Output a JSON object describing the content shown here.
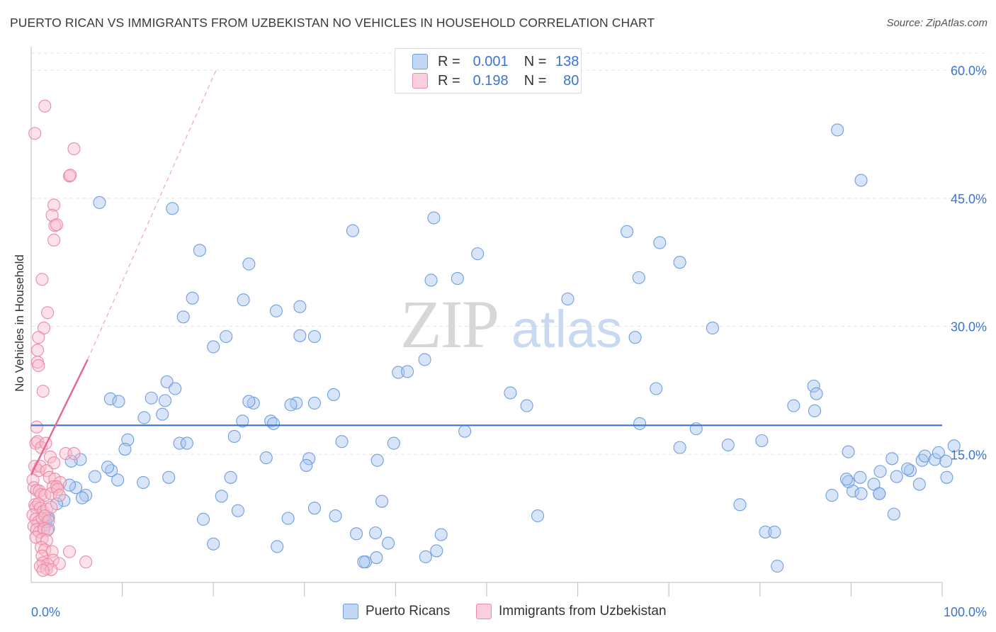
{
  "title": "PUERTO RICAN VS IMMIGRANTS FROM UZBEKISTAN NO VEHICLES IN HOUSEHOLD CORRELATION CHART",
  "source": "Source: ZipAtlas.com",
  "watermark": {
    "zip": "ZIP",
    "atlas": "atlas"
  },
  "colors": {
    "blue_fill": "#a9c6ef",
    "blue_stroke": "#6f9ee0",
    "blue_line": "#3b74d1",
    "pink_fill": "#f6bccd",
    "pink_stroke": "#ec8aa8",
    "pink_line": "#e8658f",
    "grid": "#e3e3e3",
    "tick_text": "#3b74d1"
  },
  "legend": {
    "rows": [
      {
        "r_label": "R =",
        "r_value": "0.001",
        "n_label": "N =",
        "n_value": "138"
      },
      {
        "r_label": "R =",
        "r_value": "0.198",
        "n_label": "N =",
        "n_value": "80"
      }
    ]
  },
  "bottom_legend": {
    "series1": "Puerto Ricans",
    "series2": "Immigrants from Uzbekistan"
  },
  "chart_data": {
    "type": "scatter",
    "title": "PUERTO RICAN VS IMMIGRANTS FROM UZBEKISTAN NO VEHICLES IN HOUSEHOLD CORRELATION CHART",
    "xlabel": "",
    "ylabel": "No Vehicles in Household",
    "xlim": [
      0,
      100
    ],
    "ylim": [
      0,
      62
    ],
    "x_tick_labels": [
      "0.0%",
      "100.0%"
    ],
    "y_ticks": [
      15,
      30,
      45,
      60
    ],
    "y_tick_labels": [
      "15.0%",
      "30.0%",
      "45.0%",
      "60.0%"
    ],
    "series": [
      {
        "name": "Puerto Ricans",
        "trend": {
          "x": [
            0,
            100
          ],
          "y": [
            18.4,
            18.4
          ],
          "style": "solid"
        },
        "points": [
          [
            7.5,
            44.5
          ],
          [
            15.5,
            43.8
          ],
          [
            18.5,
            38.9
          ],
          [
            23.9,
            37.3
          ],
          [
            17.7,
            33.3
          ],
          [
            23.3,
            33.1
          ],
          [
            16.7,
            31.1
          ],
          [
            26.9,
            31.8
          ],
          [
            20,
            27.6
          ],
          [
            21.4,
            28.8
          ],
          [
            29.5,
            32.3
          ],
          [
            29.5,
            28.9
          ],
          [
            31.1,
            28.8
          ],
          [
            35.3,
            41.2
          ],
          [
            44.2,
            42.7
          ],
          [
            49,
            38.5
          ],
          [
            43.9,
            35.4
          ],
          [
            46.8,
            35.6
          ],
          [
            52.6,
            22.2
          ],
          [
            54.4,
            20.7
          ],
          [
            43.2,
            26.1
          ],
          [
            40.3,
            24.6
          ],
          [
            41.3,
            24.7
          ],
          [
            58.9,
            33.2
          ],
          [
            65.4,
            41.1
          ],
          [
            66.7,
            35.7
          ],
          [
            69,
            39.8
          ],
          [
            71.2,
            37.5
          ],
          [
            66.3,
            28.7
          ],
          [
            74.8,
            29.8
          ],
          [
            68.6,
            22.7
          ],
          [
            66.8,
            18.6
          ],
          [
            73,
            18
          ],
          [
            71.2,
            15.8
          ],
          [
            76.5,
            16.1
          ],
          [
            80.2,
            16.6
          ],
          [
            83.7,
            20.7
          ],
          [
            86,
            20.1
          ],
          [
            85.9,
            23
          ],
          [
            86.2,
            22.1
          ],
          [
            88.5,
            53
          ],
          [
            91.1,
            47.1
          ],
          [
            93.1,
            10.4
          ],
          [
            94.5,
            14.5
          ],
          [
            95,
            12.4
          ],
          [
            96.5,
            13.1
          ],
          [
            97.8,
            14.3
          ],
          [
            98.1,
            14.8
          ],
          [
            97.5,
            11.5
          ],
          [
            99.2,
            14.4
          ],
          [
            99.6,
            15.2
          ],
          [
            100.4,
            14.2
          ],
          [
            100.5,
            12.3
          ],
          [
            101.3,
            16
          ],
          [
            93.2,
            13
          ],
          [
            96.2,
            13.3
          ],
          [
            91,
            12.3
          ],
          [
            92.5,
            11.5
          ],
          [
            90.2,
            10.7
          ],
          [
            89.7,
            11.8
          ],
          [
            89.5,
            12.1
          ],
          [
            87.9,
            10.2
          ],
          [
            89.7,
            15.3
          ],
          [
            91.1,
            10.4
          ],
          [
            93.1,
            10.4
          ],
          [
            94.7,
            8
          ],
          [
            80.6,
            5.9
          ],
          [
            81.6,
            5.9
          ],
          [
            81.9,
            1.9
          ],
          [
            77.8,
            9.1
          ],
          [
            55.6,
            7.8
          ],
          [
            47.6,
            17.7
          ],
          [
            45,
            5.6
          ],
          [
            44.5,
            3.7
          ],
          [
            43.3,
            3
          ],
          [
            37.9,
            2.9
          ],
          [
            36.7,
            2.4
          ],
          [
            39.2,
            4.6
          ],
          [
            35.7,
            5.7
          ],
          [
            37.8,
            5.8
          ],
          [
            33.4,
            7.8
          ],
          [
            31.1,
            8.7
          ],
          [
            28.2,
            7.5
          ],
          [
            27,
            4.2
          ],
          [
            20,
            4.5
          ],
          [
            18.9,
            7.4
          ],
          [
            20.9,
            10.1
          ],
          [
            22.7,
            8.4
          ],
          [
            21.9,
            12.3
          ],
          [
            22.3,
            17.1
          ],
          [
            23.2,
            18.9
          ],
          [
            24.4,
            21
          ],
          [
            23.9,
            21.2
          ],
          [
            25.8,
            14.6
          ],
          [
            26.3,
            18.9
          ],
          [
            26.6,
            18.6
          ],
          [
            29.1,
            21
          ],
          [
            28.5,
            20.8
          ],
          [
            30.5,
            14.5
          ],
          [
            30.2,
            13.7
          ],
          [
            31.1,
            21
          ],
          [
            33.2,
            22
          ],
          [
            34.1,
            16.5
          ],
          [
            38,
            14.3
          ],
          [
            39.8,
            16.3
          ],
          [
            38.5,
            9.5
          ],
          [
            36.5,
            2.4
          ],
          [
            16.3,
            16.3
          ],
          [
            17.1,
            16.3
          ],
          [
            15.1,
            12.3
          ],
          [
            14.4,
            19.7
          ],
          [
            14.7,
            21.3
          ],
          [
            14.9,
            23.5
          ],
          [
            15.8,
            22.7
          ],
          [
            13.2,
            21.6
          ],
          [
            12.4,
            19.3
          ],
          [
            12.3,
            11.7
          ],
          [
            10.6,
            16.7
          ],
          [
            10.3,
            15.6
          ],
          [
            9.5,
            12
          ],
          [
            8.8,
            13.1
          ],
          [
            8.4,
            13.5
          ],
          [
            8.7,
            21.5
          ],
          [
            9.6,
            21.2
          ],
          [
            7,
            12.4
          ],
          [
            6,
            10.2
          ],
          [
            5.4,
            14.4
          ],
          [
            5.6,
            9.9
          ],
          [
            4.9,
            11.1
          ],
          [
            4.4,
            14.2
          ],
          [
            4.2,
            11.4
          ],
          [
            3.6,
            9.6
          ],
          [
            2.8,
            9.2
          ],
          [
            1.8,
            7.5
          ],
          [
            1.5,
            6.7
          ],
          [
            1.9,
            6.3
          ],
          [
            1.6,
            7.1
          ],
          [
            1.9,
            7.6
          ]
        ]
      },
      {
        "name": "Immigrants from Uzbekistan",
        "trend": {
          "x": [
            0,
            6.2
          ],
          "y": [
            12.6,
            26.1
          ],
          "dashed_to": {
            "x": 20.3,
            "y": 60
          },
          "style": "solid+dashed"
        },
        "points": [
          [
            1.5,
            55.8
          ],
          [
            0.4,
            52.6
          ],
          [
            4.7,
            50.8
          ],
          [
            4.2,
            47.6
          ],
          [
            4.3,
            47.7
          ],
          [
            2.5,
            44.2
          ],
          [
            2.3,
            43
          ],
          [
            2.6,
            41.8
          ],
          [
            2.5,
            40.1
          ],
          [
            2.8,
            41.9
          ],
          [
            1.2,
            35.5
          ],
          [
            1.8,
            31.6
          ],
          [
            1.4,
            29.8
          ],
          [
            0.8,
            28.7
          ],
          [
            0.7,
            27.2
          ],
          [
            0.7,
            25.8
          ],
          [
            0.8,
            25.4
          ],
          [
            1.3,
            22.4
          ],
          [
            0.6,
            18.2
          ],
          [
            0.5,
            16.3
          ],
          [
            0.7,
            16.5
          ],
          [
            1.1,
            15.8
          ],
          [
            1.6,
            16.3
          ],
          [
            2.1,
            14.7
          ],
          [
            2.5,
            14
          ],
          [
            3.8,
            15.1
          ],
          [
            4.7,
            15.1
          ],
          [
            0.4,
            13.6
          ],
          [
            0.8,
            13.1
          ],
          [
            1,
            13.6
          ],
          [
            1.7,
            13.1
          ],
          [
            2,
            12.3
          ],
          [
            2.6,
            12.1
          ],
          [
            3.2,
            11.7
          ],
          [
            2.4,
            11.2
          ],
          [
            2.8,
            11.2
          ],
          [
            0.2,
            12
          ],
          [
            0.3,
            11.1
          ],
          [
            0.6,
            10.8
          ],
          [
            0.9,
            10.7
          ],
          [
            1.1,
            10.3
          ],
          [
            1.5,
            10.2
          ],
          [
            2.2,
            10.4
          ],
          [
            2.9,
            10.9
          ],
          [
            3.1,
            10.2
          ],
          [
            0.4,
            9.1
          ],
          [
            0.5,
            8.8
          ],
          [
            0.8,
            9.2
          ],
          [
            1,
            8.7
          ],
          [
            1.3,
            8.3
          ],
          [
            1.7,
            8.6
          ],
          [
            2.2,
            8.8
          ],
          [
            0.2,
            7.9
          ],
          [
            0.5,
            7.4
          ],
          [
            0.8,
            7.1
          ],
          [
            1.2,
            7.5
          ],
          [
            1.5,
            7.8
          ],
          [
            1.9,
            7.2
          ],
          [
            0.3,
            6.6
          ],
          [
            0.6,
            6.2
          ],
          [
            0.9,
            5.9
          ],
          [
            1.4,
            6.3
          ],
          [
            1.8,
            6.1
          ],
          [
            0.5,
            5.3
          ],
          [
            1.2,
            5.1
          ],
          [
            1.7,
            4.9
          ],
          [
            1.1,
            4.1
          ],
          [
            1.5,
            3.8
          ],
          [
            2.3,
            3.6
          ],
          [
            4.2,
            3.6
          ],
          [
            1.2,
            3.1
          ],
          [
            2.4,
            2.6
          ],
          [
            1.3,
            2.3
          ],
          [
            1.8,
            2.1
          ],
          [
            3.1,
            2.2
          ],
          [
            6,
            2.4
          ],
          [
            1,
            1.9
          ],
          [
            1.7,
            1.6
          ],
          [
            2.2,
            1.5
          ],
          [
            1.3,
            1.4
          ]
        ]
      }
    ]
  }
}
